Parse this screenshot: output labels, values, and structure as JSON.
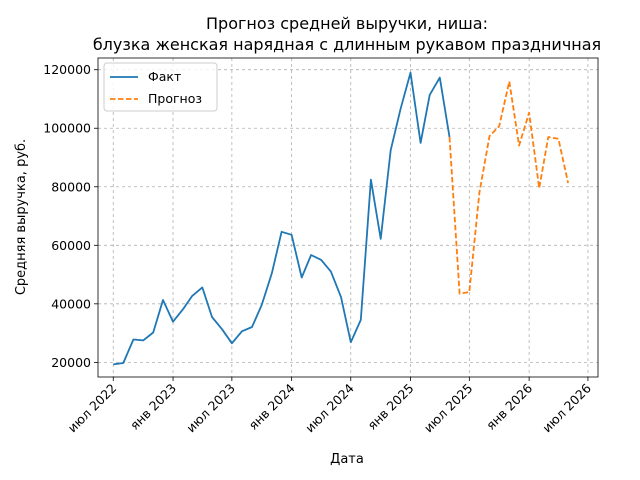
{
  "chart_data": {
    "type": "line",
    "title": "Прогноз средней выручки, ниша:",
    "subtitle": "блузка женская нарядная с длинным рукавом праздничная",
    "xlabel": "Дата",
    "ylabel": "Средняя выручка, руб.",
    "xlim": [
      "2022-05-15",
      "2026-08-01"
    ],
    "ylim": [
      15000,
      124000
    ],
    "grid": true,
    "legend_position": "top-left",
    "x_ticks": [
      {
        "date": "2022-07-01",
        "label": "июл 2022"
      },
      {
        "date": "2023-01-01",
        "label": "янв 2023"
      },
      {
        "date": "2023-07-01",
        "label": "июл 2023"
      },
      {
        "date": "2024-01-01",
        "label": "янв 2024"
      },
      {
        "date": "2024-07-01",
        "label": "июл 2024"
      },
      {
        "date": "2025-01-01",
        "label": "янв 2025"
      },
      {
        "date": "2025-07-01",
        "label": "июл 2025"
      },
      {
        "date": "2026-01-01",
        "label": "янв 2026"
      },
      {
        "date": "2026-07-01",
        "label": "июл 2026"
      }
    ],
    "y_ticks": [
      {
        "value": 20000,
        "label": "20000"
      },
      {
        "value": 40000,
        "label": "40000"
      },
      {
        "value": 60000,
        "label": "60000"
      },
      {
        "value": 80000,
        "label": "80000"
      },
      {
        "value": 100000,
        "label": "100000"
      },
      {
        "value": 120000,
        "label": "120000"
      }
    ],
    "series": [
      {
        "name": "Факт",
        "color": "#1f77b4",
        "style": "solid",
        "x": [
          "2022-07-01",
          "2022-08-01",
          "2022-09-01",
          "2022-10-01",
          "2022-11-01",
          "2022-12-01",
          "2023-01-01",
          "2023-02-01",
          "2023-03-01",
          "2023-04-01",
          "2023-05-01",
          "2023-06-01",
          "2023-07-01",
          "2023-08-01",
          "2023-09-01",
          "2023-10-01",
          "2023-11-01",
          "2023-12-01",
          "2024-01-01",
          "2024-02-01",
          "2024-03-01",
          "2024-04-01",
          "2024-05-01",
          "2024-06-01",
          "2024-07-01",
          "2024-08-01",
          "2024-09-01",
          "2024-10-01",
          "2024-11-01",
          "2024-12-01",
          "2025-01-01",
          "2025-02-01",
          "2025-03-01",
          "2025-04-01",
          "2025-05-01"
        ],
        "values": [
          19300,
          19800,
          27800,
          27500,
          30200,
          41300,
          33900,
          38200,
          42700,
          45600,
          35500,
          31300,
          26500,
          30600,
          32100,
          39600,
          50400,
          64600,
          63600,
          49000,
          56700,
          55000,
          51000,
          42300,
          26900,
          34500,
          82400,
          62200,
          92500,
          106500,
          119000,
          95000,
          111400,
          117300,
          97000
        ]
      },
      {
        "name": "Прогноз",
        "color": "#ff7f0e",
        "style": "dashed",
        "x": [
          "2025-05-01",
          "2025-06-01",
          "2025-07-01",
          "2025-08-01",
          "2025-09-01",
          "2025-10-01",
          "2025-11-01",
          "2025-12-01",
          "2026-01-01",
          "2026-02-01",
          "2026-03-01",
          "2026-04-01",
          "2026-05-01"
        ],
        "values": [
          97000,
          43500,
          44000,
          78000,
          97300,
          100700,
          116000,
          94100,
          105300,
          79500,
          97000,
          96400,
          81300
        ]
      }
    ]
  }
}
